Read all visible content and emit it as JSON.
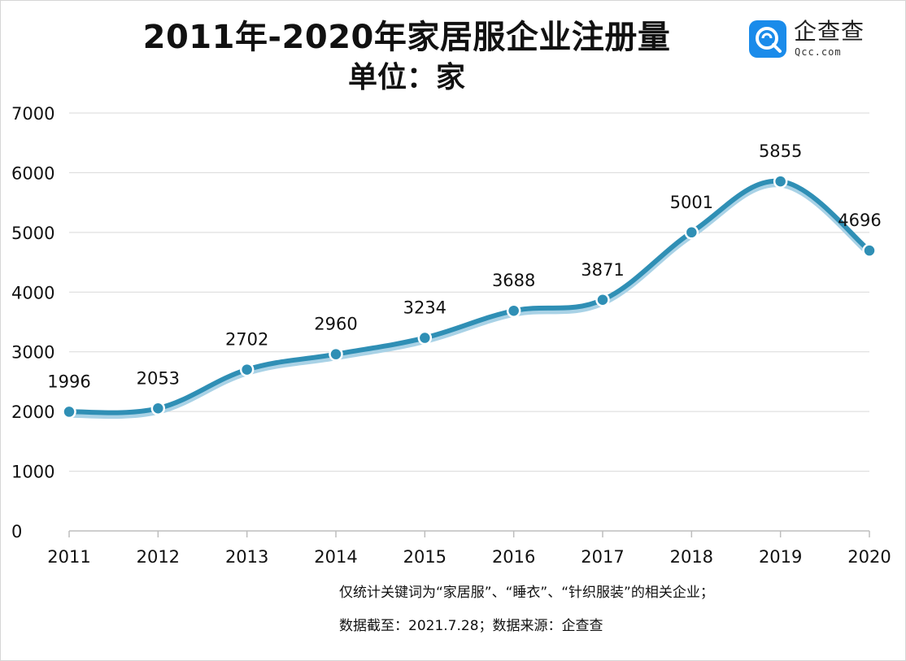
{
  "header": {
    "title": "2011年-2020年家居服企业注册量",
    "subtitle": "单位：家"
  },
  "logo": {
    "name": "企查查",
    "domain": "Qcc.com"
  },
  "notes": {
    "line1": "仅统计关键词为“家居服”、“睡衣”、“针织服装”的相关企业；",
    "line2": "数据截至：2021.7.28；数据来源：企查查"
  },
  "colors": {
    "line": "#2f8fb5",
    "line_shadow": "#a9d2e6",
    "marker_fill": "#2f8fb5",
    "marker_stroke": "#ffffff",
    "grid": "#d9d9d9",
    "logo": "#1a8bea"
  },
  "chart_data": {
    "type": "line",
    "title": "2011年-2020年家居服企业注册量",
    "subtitle": "单位：家",
    "categories": [
      "2011",
      "2012",
      "2013",
      "2014",
      "2015",
      "2016",
      "2017",
      "2018",
      "2019",
      "2020"
    ],
    "values": [
      1996,
      2053,
      2702,
      2960,
      3234,
      3688,
      3871,
      5001,
      5855,
      4696
    ],
    "yticks": [
      "0",
      "1000",
      "2000",
      "3000",
      "4000",
      "5000",
      "6000",
      "7000"
    ],
    "ylim": [
      0,
      7000
    ],
    "grid": true,
    "smooth": true,
    "data_labels": true
  }
}
